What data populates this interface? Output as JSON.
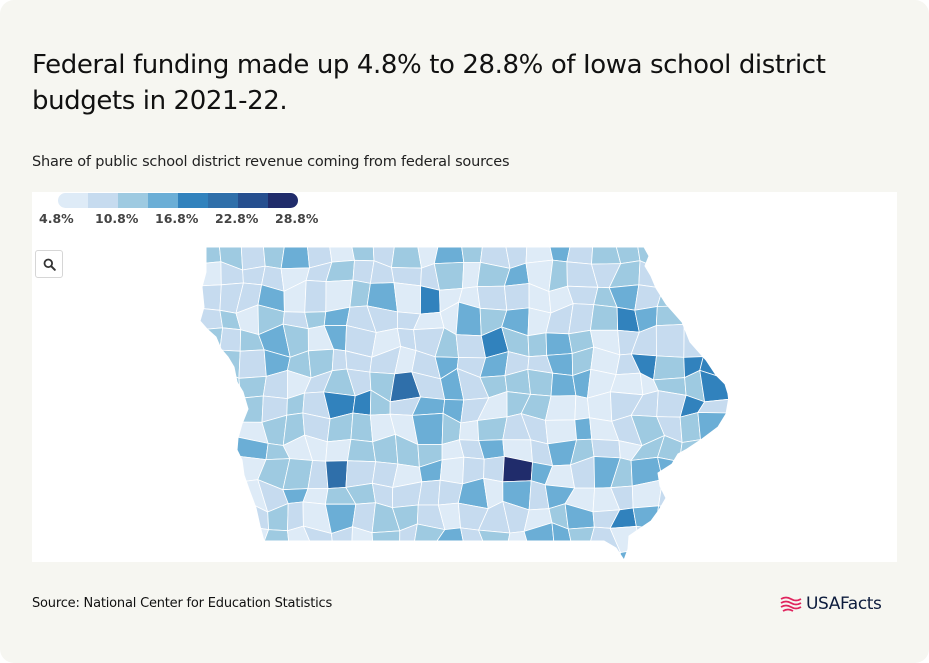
{
  "header": {
    "title": "Federal funding made up 4.8% to 28.8% of Iowa school district budgets in 2021-22.",
    "subtitle": "Share of public school district revenue coming from federal sources"
  },
  "legend": {
    "ticks": [
      "4.8%",
      "10.8%",
      "16.8%",
      "22.8%",
      "28.8%"
    ],
    "colors": [
      "#deebf7",
      "#c6dbef",
      "#9ecae1",
      "#6baed6",
      "#3182bd",
      "#2f6faa",
      "#264f8f",
      "#202c6b"
    ]
  },
  "zoom": {
    "icon": "search-icon"
  },
  "chart_data": {
    "type": "choropleth",
    "region": "Iowa school districts",
    "value_range": [
      4.8,
      28.8
    ],
    "unit": "%",
    "color_scale": [
      "#deebf7",
      "#c6dbef",
      "#9ecae1",
      "#6baed6",
      "#3182bd",
      "#2f6faa",
      "#264f8f",
      "#202c6b"
    ]
  },
  "footer": {
    "source": "Source: National Center for Education Statistics",
    "logo_text": "USAFacts",
    "logo_icon": "usafacts-flag-icon",
    "logo_color": "#e0245e"
  }
}
